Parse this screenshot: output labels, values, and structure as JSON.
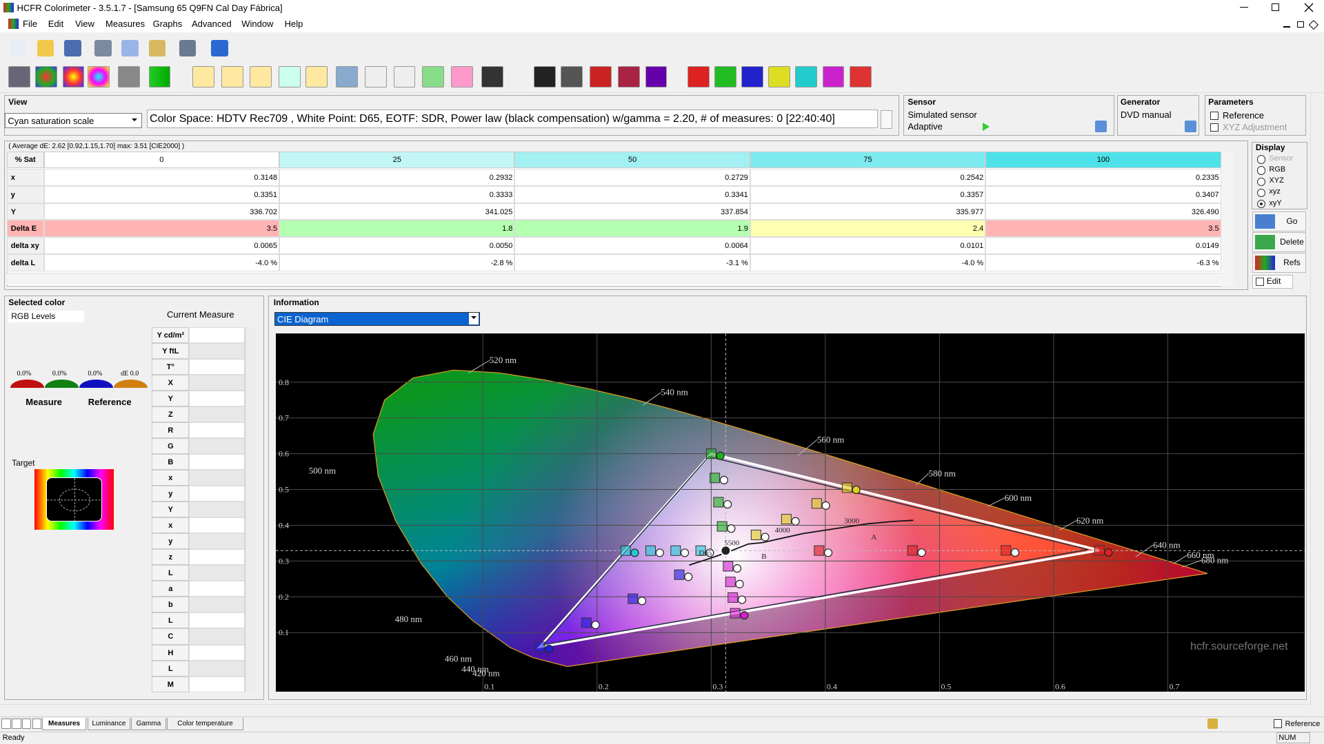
{
  "window": {
    "title": "HCFR Colorimeter - 3.5.1.7 - [Samsung 65 Q9FN Cal Day Fábrica]"
  },
  "menu": [
    "File",
    "Edit",
    "View",
    "Measures",
    "Graphs",
    "Advanced",
    "Window",
    "Help"
  ],
  "view_panel": {
    "label": "View",
    "dropdown": "Cyan saturation scale",
    "info": "Color Space: HDTV Rec709 , White Point: D65, EOTF:  SDR, Power law (black compensation) w/gamma = 2.20, # of measures: 0 [22:40:40]"
  },
  "sensor": {
    "label": "Sensor",
    "name": "Simulated sensor",
    "mode": "Adaptive"
  },
  "generator": {
    "label": "Generator",
    "name": "DVD manual"
  },
  "parameters": {
    "label": "Parameters",
    "options": [
      "Reference",
      "XYZ Adjustment"
    ]
  },
  "measures_table": {
    "summary": "( Average dE: 2.62 [0.92,1.15,1.70] max: 3.51 [CIE2000] )",
    "header": [
      "% Sat",
      "0",
      "25",
      "50",
      "75",
      "100"
    ],
    "rows": [
      [
        "x",
        "0.3148",
        "0.2932",
        "0.2729",
        "0.2542",
        "0.2335"
      ],
      [
        "y",
        "0.3351",
        "0.3333",
        "0.3341",
        "0.3357",
        "0.3407"
      ],
      [
        "Y",
        "336.702",
        "341.025",
        "337.854",
        "335.977",
        "326.490"
      ],
      [
        "Delta E",
        "3.5",
        "1.8",
        "1.9",
        "2.4",
        "3.5"
      ],
      [
        "delta xy",
        "0.0065",
        "0.0050",
        "0.0064",
        "0.0101",
        "0.0149"
      ],
      [
        "delta L",
        "-4.0 %",
        "-2.8 %",
        "-3.1 %",
        "-4.0 %",
        "-6.3 %"
      ]
    ]
  },
  "display": {
    "label": "Display",
    "options": [
      "Sensor",
      "RGB",
      "XYZ",
      "xyz",
      "xyY"
    ],
    "buttons": [
      "Go",
      "Delete",
      "Refs"
    ],
    "edit": "Edit"
  },
  "selected_color": {
    "label": "Selected color",
    "rgb_levels": "RGB Levels",
    "current_measure": "Current Measure",
    "levels": [
      "0.0%",
      "0.0%",
      "0.0%",
      "dE 0.0"
    ],
    "measure": "Measure",
    "reference": "Reference",
    "target": "Target",
    "rows": [
      "Y cd/m²",
      "Y ftL",
      "T°",
      "X",
      "Y",
      "Z",
      "R",
      "G",
      "B",
      "x",
      "y",
      "Y",
      "x",
      "y",
      "z",
      "L",
      "a",
      "b",
      "L",
      "C",
      "H",
      "L",
      "M"
    ]
  },
  "information": {
    "label": "Information",
    "dropdown": "CIE Diagram",
    "diagram": {
      "xticks": [
        "0.1",
        "0.2",
        "0.3",
        "0.4",
        "0.5",
        "0.6",
        "0.7"
      ],
      "yticks": [
        "0.1",
        "0.2",
        "0.3",
        "0.4",
        "0.5",
        "0.6",
        "0.7",
        "0.8"
      ],
      "wavelengths": [
        "520 nm",
        "540 nm",
        "560 nm",
        "580 nm",
        "600 nm",
        "620 nm",
        "640 nm",
        "660 nm",
        "680 nm",
        "500 nm",
        "480 nm",
        "460 nm",
        "440 nm",
        "420 nm"
      ],
      "annotations": [
        "D65",
        "5500",
        "4000",
        "3000",
        "A",
        "B"
      ],
      "watermark": "hcfr.sourceforge.net"
    }
  },
  "tabs": [
    "Measures",
    "Luminance",
    "Gamma",
    "Color temperature"
  ],
  "status": {
    "text": "Ready",
    "num": "NUM",
    "reference": "Reference"
  }
}
